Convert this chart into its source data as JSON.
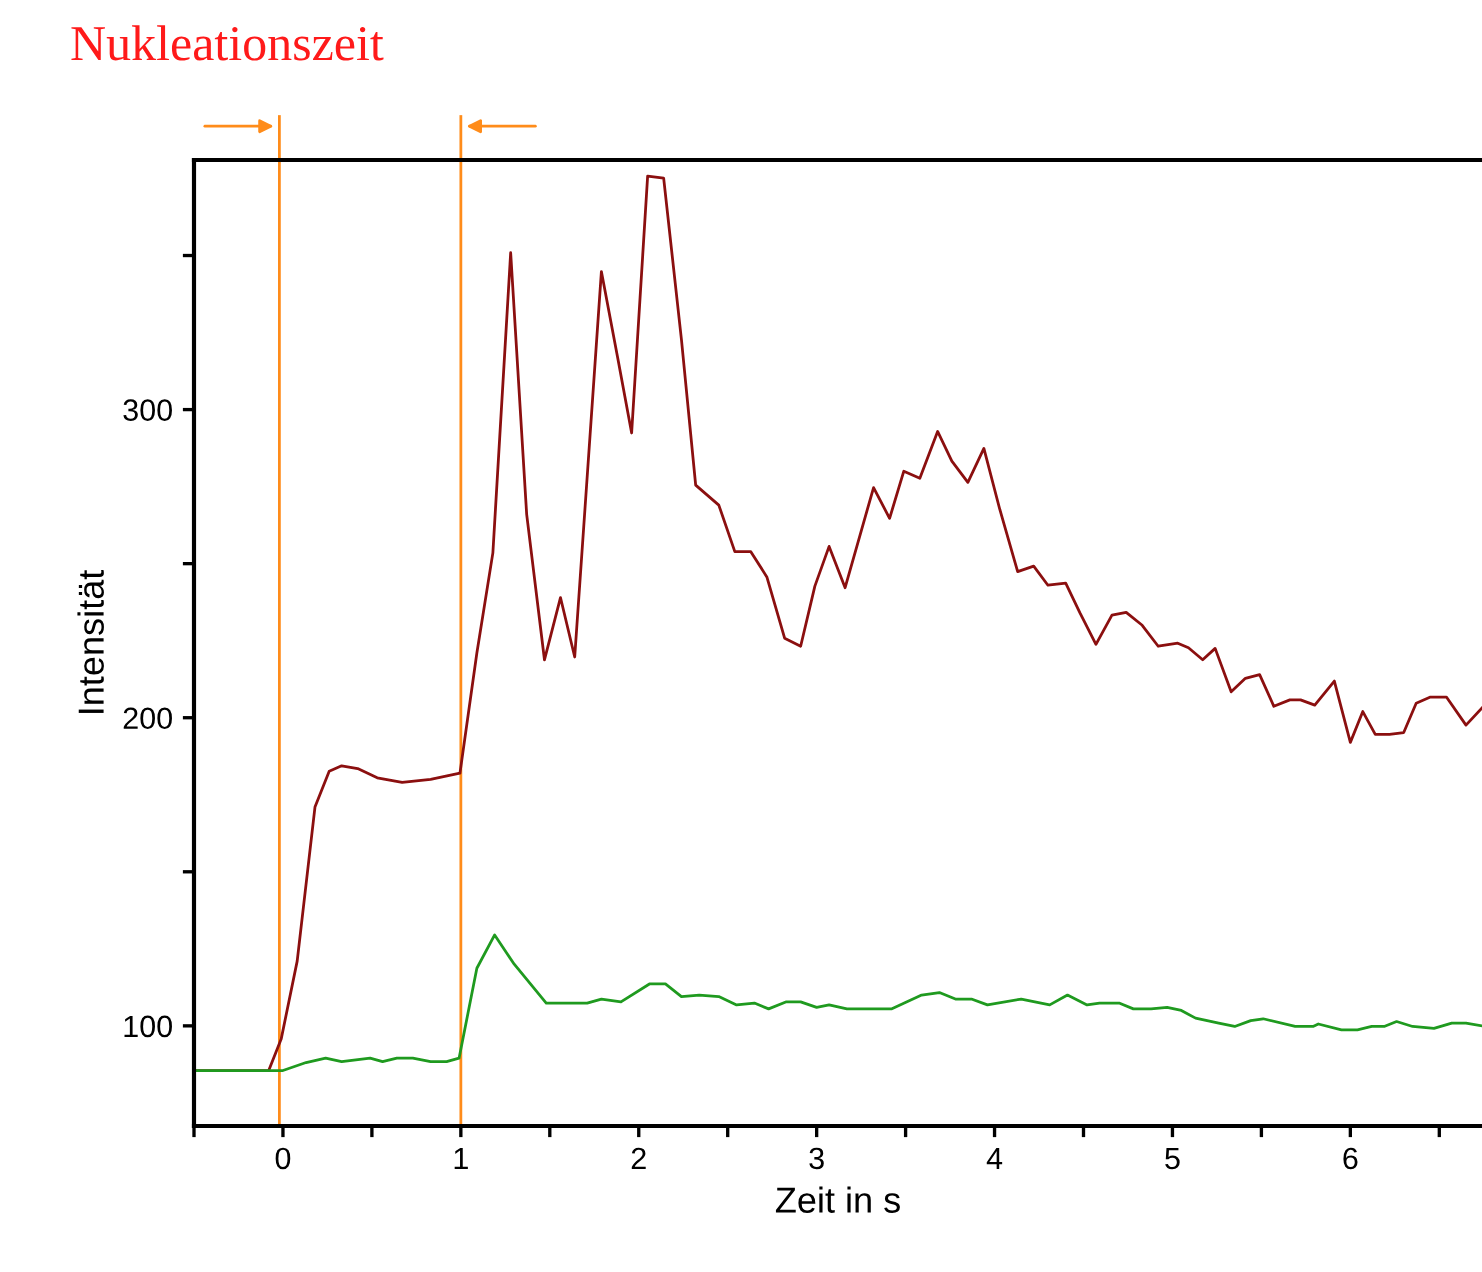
{
  "chart_data": {
    "type": "line",
    "title": "Nukleationszeit",
    "xlabel": "Zeit in s",
    "ylabel": "Intensität",
    "xlim": [
      -0.5,
      6.74
    ],
    "ylim": [
      67.5,
      381
    ],
    "xticks": [
      {
        "value": -0.5,
        "label": null
      },
      0,
      {
        "value": 0.5,
        "label": null
      },
      1,
      {
        "value": 1.5,
        "label": null
      },
      2,
      {
        "value": 2.5,
        "label": null
      },
      3,
      {
        "value": 3.5,
        "label": null
      },
      4,
      {
        "value": 4.5,
        "label": null
      },
      5,
      {
        "value": 5.5,
        "label": null
      },
      6,
      {
        "value": 6.5,
        "label": null
      }
    ],
    "yticks": [
      100,
      {
        "value": 150,
        "label": null
      },
      200,
      {
        "value": 250,
        "label": null
      },
      300,
      {
        "value": 350,
        "label": null
      }
    ],
    "grid": false,
    "legend": false,
    "marker": "none",
    "line_style": "solid",
    "ref_lines": [
      {
        "axis": "x",
        "value": -0.02,
        "color": "#ff8c1a",
        "line_style": "solid"
      },
      {
        "axis": "x",
        "value": 1.0,
        "color": "#ff8c1a",
        "line_style": "solid"
      }
    ],
    "series": [
      {
        "color": "#8b0f0f",
        "x": [
          -0.5,
          -0.08,
          -0.01,
          0.08,
          0.18,
          0.26,
          0.33,
          0.42,
          0.53,
          0.67,
          0.83,
          0.995,
          1.09,
          1.18,
          1.28,
          1.37,
          1.47,
          1.56,
          1.64,
          1.79,
          1.88,
          1.96,
          2.05,
          2.14,
          2.24,
          2.32,
          2.45,
          2.54,
          2.63,
          2.72,
          2.82,
          2.91,
          2.99,
          3.07,
          3.16,
          3.32,
          3.41,
          3.49,
          3.58,
          3.68,
          3.76,
          3.85,
          3.94,
          4.03,
          4.13,
          4.22,
          4.3,
          4.4,
          4.48,
          4.57,
          4.66,
          4.74,
          4.83,
          4.92,
          5.03,
          5.09,
          5.17,
          5.24,
          5.33,
          5.41,
          5.49,
          5.57,
          5.66,
          5.72,
          5.8,
          5.91,
          6.0,
          6.07,
          6.14,
          6.22,
          6.3,
          6.37,
          6.45,
          6.54,
          6.65,
          6.74
        ],
        "values": [
          85.5,
          85.5,
          95.7,
          121,
          171,
          182.6,
          184.4,
          183.5,
          180.5,
          179,
          180,
          182,
          221,
          253.5,
          350.9,
          266,
          218.8,
          239,
          219.7,
          344.8,
          317.3,
          292.4,
          375.8,
          375.1,
          322.7,
          275.5,
          269,
          253.9,
          253.9,
          245.7,
          225.8,
          223.2,
          242.7,
          255.6,
          242.2,
          274.7,
          264.7,
          280,
          277.7,
          292.9,
          283.3,
          276.4,
          287.4,
          267.5,
          247.4,
          249.2,
          243,
          243.7,
          234,
          223.8,
          233.3,
          234.2,
          230,
          223.2,
          224.2,
          222.7,
          218.8,
          222.5,
          208.4,
          212.8,
          214,
          203.7,
          205.8,
          205.8,
          204.1,
          211.9,
          192,
          202,
          194.6,
          194.6,
          195.2,
          204.7,
          206.7,
          206.7,
          197.6,
          203.2
        ]
      },
      {
        "color": "#1f9a1f",
        "x": [
          -0.5,
          0.0,
          0.13,
          0.24,
          0.33,
          0.49,
          0.56,
          0.64,
          0.73,
          0.83,
          0.92,
          0.99,
          1.09,
          1.19,
          1.3,
          1.48,
          1.71,
          1.79,
          1.9,
          2.06,
          2.15,
          2.24,
          2.34,
          2.45,
          2.55,
          2.65,
          2.73,
          2.83,
          2.91,
          3.0,
          3.07,
          3.17,
          3.42,
          3.59,
          3.69,
          3.78,
          3.87,
          3.96,
          4.15,
          4.31,
          4.41,
          4.52,
          4.59,
          4.7,
          4.78,
          4.88,
          4.97,
          5.05,
          5.13,
          5.26,
          5.35,
          5.44,
          5.51,
          5.69,
          5.79,
          5.82,
          5.95,
          6.04,
          6.12,
          6.19,
          6.26,
          6.35,
          6.47,
          6.57,
          6.65,
          6.74
        ],
        "values": [
          85.5,
          85.5,
          88.1,
          89.5,
          88.4,
          89.5,
          88.4,
          89.5,
          89.5,
          88.4,
          88.4,
          89.5,
          118.7,
          129.5,
          120,
          107.4,
          107.4,
          108.7,
          107.8,
          113.6,
          113.6,
          109.5,
          110,
          109.5,
          106.8,
          107.4,
          105.5,
          107.8,
          107.8,
          106,
          106.8,
          105.5,
          105.5,
          110,
          110.8,
          108.7,
          108.7,
          106.8,
          108.7,
          106.8,
          110,
          106.8,
          107.4,
          107.4,
          105.5,
          105.5,
          106,
          105,
          102.5,
          100.9,
          99.8,
          101.7,
          102.3,
          99.8,
          99.8,
          100.6,
          98.7,
          98.7,
          99.8,
          99.8,
          101.4,
          99.8,
          99.2,
          100.9,
          100.9,
          100
        ]
      }
    ]
  }
}
